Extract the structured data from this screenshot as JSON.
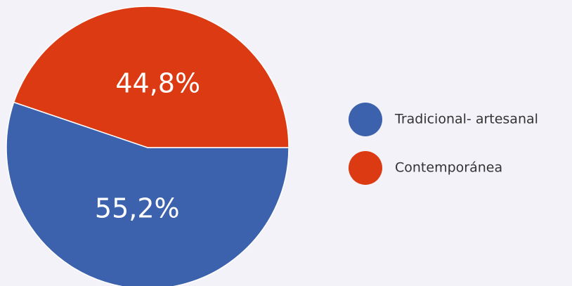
{
  "chart_data": {
    "type": "pie",
    "categories": [
      "Tradicional- artesanal",
      "Contemporánea"
    ],
    "values": [
      55.2,
      44.8
    ],
    "value_labels": [
      "55,2%",
      "44,8%"
    ],
    "colors": [
      "#3d62ad",
      "#dc3a12"
    ]
  }
}
